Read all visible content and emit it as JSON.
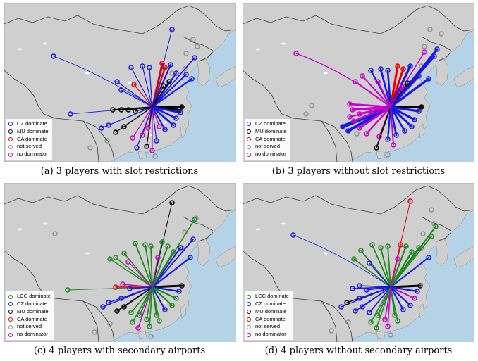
{
  "colors": {
    "LCC": "#1f8a1f",
    "CZ": "#1818e6",
    "MU": "#000000",
    "CA": "#e60000",
    "none": "#909090",
    "nodom": "#c800c8",
    "sea": "#b5d3e7",
    "land": "#cfcfcf",
    "border": "#3a3a3a"
  },
  "panels": [
    {
      "id": "a",
      "caption": "(a) 3 players with slot restrictions",
      "legend": [
        {
          "key": "CZ",
          "label": "CZ dominate"
        },
        {
          "key": "MU",
          "label": "MU dominate"
        },
        {
          "key": "CA",
          "label": "CA dominate"
        },
        {
          "key": "none",
          "label": "not served"
        },
        {
          "key": "nodom",
          "label": "no dominator"
        }
      ]
    },
    {
      "id": "b",
      "caption": "(b) 3 players without slot restrictions",
      "legend": [
        {
          "key": "CZ",
          "label": "CZ dominate"
        },
        {
          "key": "MU",
          "label": "MU dominate"
        },
        {
          "key": "CA",
          "label": "CA dominate"
        },
        {
          "key": "none",
          "label": "not served"
        },
        {
          "key": "nodom",
          "label": "no dominator"
        }
      ]
    },
    {
      "id": "c",
      "caption": "(c) 4 players with secondary airports",
      "legend": [
        {
          "key": "LCC",
          "label": "LCC dominate"
        },
        {
          "key": "CZ",
          "label": "CZ dominate"
        },
        {
          "key": "MU",
          "label": "MU dominate"
        },
        {
          "key": "CA",
          "label": "CA dominate"
        },
        {
          "key": "none",
          "label": "not served"
        },
        {
          "key": "nodom",
          "label": "no dominator"
        }
      ]
    },
    {
      "id": "d",
      "caption": "(d) 4 players without secondary airports",
      "legend": [
        {
          "key": "LCC",
          "label": "LCC dominate"
        },
        {
          "key": "CZ",
          "label": "CZ dominate"
        },
        {
          "key": "MU",
          "label": "MU dominate"
        },
        {
          "key": "CA",
          "label": "CA dominate"
        },
        {
          "key": "none",
          "label": "not served"
        },
        {
          "key": "nodom",
          "label": "no dominator"
        }
      ]
    }
  ]
}
